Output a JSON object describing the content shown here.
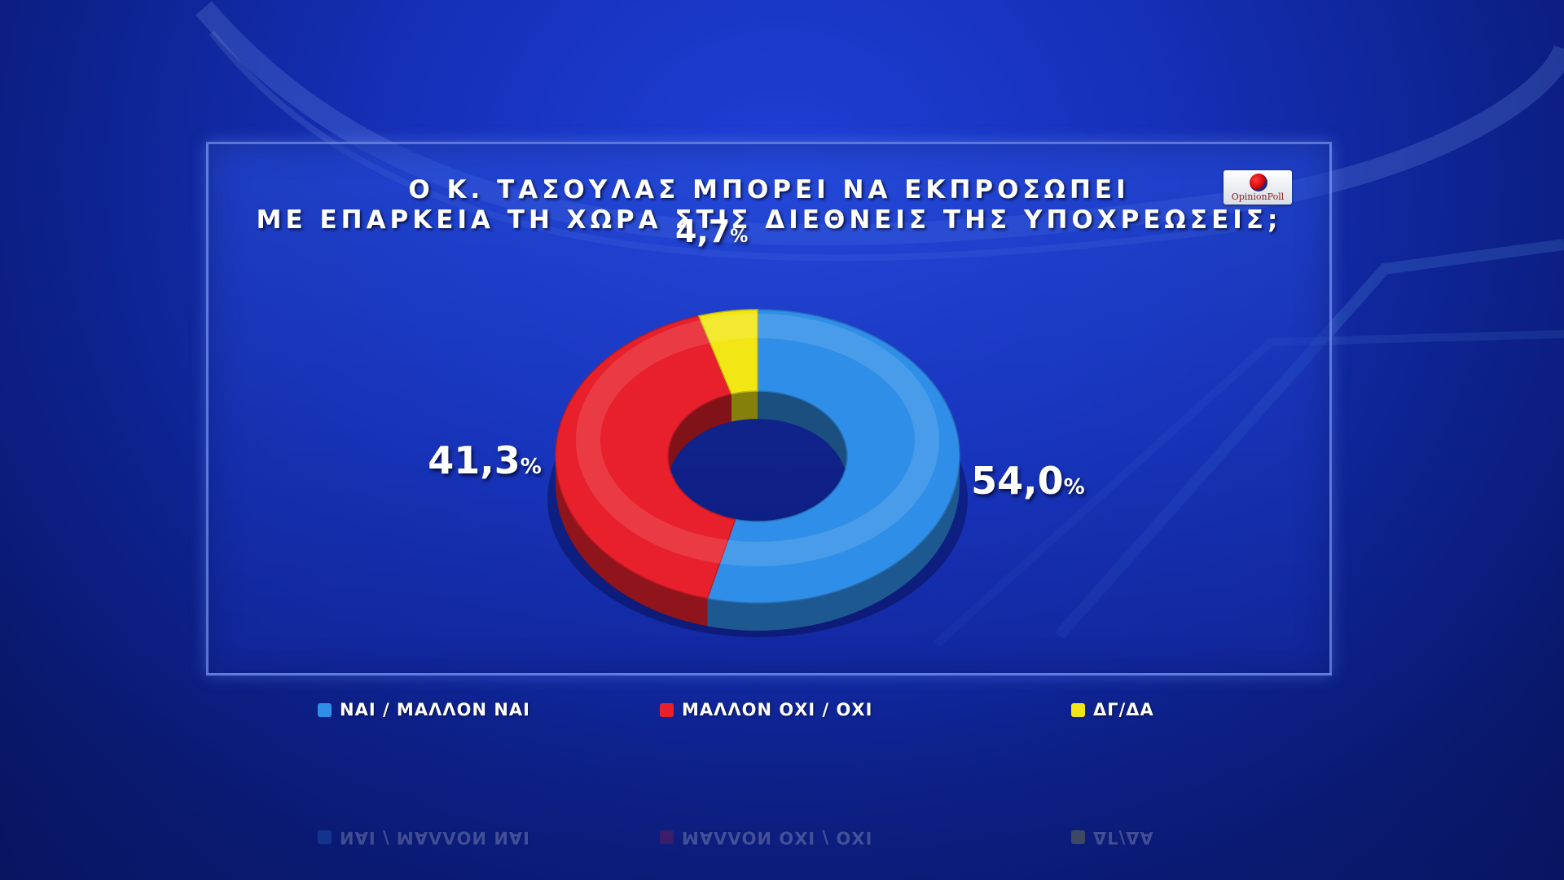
{
  "title_line1": "Ο Κ. ΤΑΣΟΥΛΑΣ ΜΠΟΡΕΙ ΝΑ ΕΚΠΡΟΣΩΠΕΙ",
  "title_line2": "ΜΕ ΕΠΑΡΚΕΙΑ ΤΗ ΧΩΡΑ ΣΤΙΣ ΔΙΕΘΝΕΙΣ ΤΗΣ ΥΠΟΧΡΕΩΣΕΙΣ;",
  "logo_text": "OpinionPoll",
  "chart_data": {
    "type": "pie",
    "title": "Ο Κ. ΤΑΣΟΥΛΑΣ ΜΠΟΡΕΙ ΝΑ ΕΚΠΡΟΣΩΠΕΙ ΜΕ ΕΠΑΡΚΕΙΑ ΤΗ ΧΩΡΑ ΣΤΙΣ ΔΙΕΘΝΕΙΣ ΤΗΣ ΥΠΟΧΡΕΩΣΕΙΣ;",
    "style": "donut-3d",
    "legend_position": "bottom",
    "slices": [
      {
        "label": "ΝΑΙ / ΜΑΛΛΟΝ ΝΑΙ",
        "value": 54.0,
        "display": "54,0",
        "color": "#2f8fe8"
      },
      {
        "label": "ΜΑΛΛΟΝ ΟΧΙ / ΟΧΙ",
        "value": 41.3,
        "display": "41,3",
        "color": "#e8202c"
      },
      {
        "label": "ΔΓ/ΔΑ",
        "value": 4.7,
        "display": "4,7",
        "color": "#f2e614"
      }
    ],
    "unit_symbol": "%"
  }
}
